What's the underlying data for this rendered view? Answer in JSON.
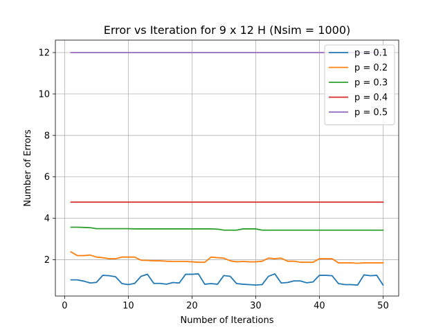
{
  "chart_data": {
    "type": "line",
    "title": "Error vs Iteration for 9 x 12 H (Nsim = 1000)",
    "xlabel": "Number of Iterations",
    "ylabel": "Number of Errors",
    "xlim": [
      -1.45,
      52.45
    ],
    "ylim": [
      0.25,
      12.6
    ],
    "xticks": [
      0,
      10,
      20,
      30,
      40,
      50
    ],
    "yticks": [
      2,
      4,
      6,
      8,
      10,
      12
    ],
    "grid": true,
    "legend_position": "top-right",
    "x": [
      1,
      2,
      3,
      4,
      5,
      6,
      7,
      8,
      9,
      10,
      11,
      12,
      13,
      14,
      15,
      16,
      17,
      18,
      19,
      20,
      21,
      22,
      23,
      24,
      25,
      26,
      27,
      28,
      29,
      30,
      31,
      32,
      33,
      34,
      35,
      36,
      37,
      38,
      39,
      40,
      41,
      42,
      43,
      44,
      45,
      46,
      47,
      48,
      49,
      50
    ],
    "series": [
      {
        "name": "p = 0.1",
        "color": "#1f77b4",
        "values": [
          1.03,
          1.03,
          0.97,
          0.88,
          0.91,
          1.25,
          1.23,
          1.18,
          0.85,
          0.8,
          0.86,
          1.2,
          1.3,
          0.86,
          0.86,
          0.82,
          0.9,
          0.88,
          1.3,
          1.3,
          1.32,
          0.82,
          0.85,
          0.82,
          1.24,
          1.2,
          0.85,
          0.82,
          0.8,
          0.78,
          0.8,
          1.2,
          1.32,
          0.88,
          0.9,
          0.98,
          0.98,
          0.89,
          0.93,
          1.25,
          1.25,
          1.23,
          0.85,
          0.8,
          0.8,
          0.78,
          1.27,
          1.23,
          1.25,
          0.78
        ]
      },
      {
        "name": "p = 0.2",
        "color": "#ff7f0e",
        "values": [
          2.38,
          2.2,
          2.2,
          2.23,
          2.13,
          2.1,
          2.05,
          2.05,
          2.13,
          2.13,
          2.13,
          1.98,
          1.97,
          1.95,
          1.95,
          1.93,
          1.92,
          1.92,
          1.92,
          1.9,
          1.88,
          1.88,
          2.13,
          2.1,
          2.08,
          1.95,
          1.9,
          1.92,
          1.9,
          1.9,
          1.93,
          2.08,
          2.05,
          2.08,
          1.93,
          1.93,
          1.88,
          1.88,
          1.88,
          2.05,
          2.05,
          2.05,
          1.85,
          1.85,
          1.85,
          1.83,
          1.85,
          1.85,
          1.85,
          1.85
        ]
      },
      {
        "name": "p = 0.3",
        "color": "#2ca02c",
        "values": [
          3.57,
          3.57,
          3.56,
          3.55,
          3.5,
          3.5,
          3.5,
          3.5,
          3.5,
          3.5,
          3.49,
          3.49,
          3.49,
          3.49,
          3.49,
          3.49,
          3.49,
          3.49,
          3.49,
          3.49,
          3.49,
          3.49,
          3.49,
          3.48,
          3.43,
          3.43,
          3.43,
          3.49,
          3.49,
          3.49,
          3.43,
          3.43,
          3.43,
          3.43,
          3.43,
          3.43,
          3.43,
          3.43,
          3.43,
          3.43,
          3.43,
          3.43,
          3.43,
          3.43,
          3.43,
          3.43,
          3.43,
          3.43,
          3.43,
          3.43
        ]
      },
      {
        "name": "p = 0.4",
        "color": "#d62728",
        "values": [
          4.78,
          4.78,
          4.78,
          4.78,
          4.78,
          4.78,
          4.78,
          4.78,
          4.78,
          4.78,
          4.78,
          4.78,
          4.78,
          4.78,
          4.78,
          4.78,
          4.78,
          4.78,
          4.78,
          4.78,
          4.78,
          4.78,
          4.78,
          4.78,
          4.78,
          4.78,
          4.78,
          4.78,
          4.78,
          4.78,
          4.78,
          4.78,
          4.78,
          4.78,
          4.78,
          4.78,
          4.78,
          4.78,
          4.78,
          4.78,
          4.78,
          4.78,
          4.78,
          4.78,
          4.78,
          4.78,
          4.78,
          4.78,
          4.78,
          4.78
        ]
      },
      {
        "name": "p = 0.5",
        "color": "#9467bd",
        "values": [
          12.0,
          12.0,
          12.0,
          12.0,
          12.0,
          12.0,
          12.0,
          12.0,
          12.0,
          12.0,
          12.0,
          12.0,
          12.0,
          12.0,
          12.0,
          12.0,
          12.0,
          12.0,
          12.0,
          12.0,
          12.0,
          12.0,
          12.0,
          12.0,
          12.0,
          12.0,
          12.0,
          12.0,
          12.0,
          12.0,
          12.0,
          12.0,
          12.0,
          12.0,
          12.0,
          12.0,
          12.0,
          12.0,
          12.0,
          12.0,
          12.0,
          12.0,
          12.0,
          12.0,
          12.0,
          12.0,
          12.0,
          12.0,
          12.0,
          12.0
        ]
      }
    ]
  }
}
